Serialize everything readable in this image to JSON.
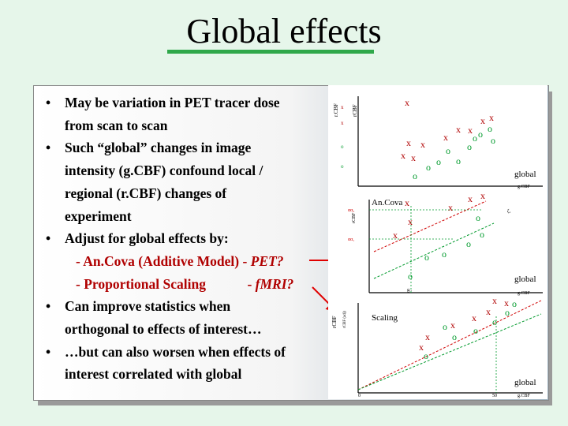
{
  "slide": {
    "title": "Global effects",
    "bullets": [
      {
        "lines": [
          "May be variation in PET tracer dose",
          "from scan to scan"
        ]
      },
      {
        "lines": [
          "Such “global” changes in image",
          "intensity (g.CBF) confound local /",
          "regional (r.CBF) changes of",
          "experiment"
        ]
      },
      {
        "lines": [
          "Adjust for global effects by:"
        ],
        "subs": [
          {
            "text": "- An.Cova (Additive Model) - ",
            "model": "PET?"
          },
          {
            "text": "- Proportional Scaling            - ",
            "model": "fMRI?"
          }
        ]
      },
      {
        "lines": [
          "Can improve statistics when",
          "orthogonal to effects of interest…"
        ]
      },
      {
        "lines": [
          "…but can also worsen when effects of",
          "interest correlated with global"
        ]
      }
    ]
  },
  "figure": {
    "panels": [
      {
        "label": "",
        "xlabel": "global",
        "xunit": "g.CBF",
        "ylabel": "r.CBF",
        "ylabel2": "rCBF"
      },
      {
        "label": "An.Cova",
        "xlabel": "global",
        "xunit": "g.CBF",
        "ylabel": "rCBF",
        "tick1": "αα₂",
        "tick2": "αα₁",
        "c_label": "ζ₁",
        "g_label": "g.."
      },
      {
        "label": "Scaling",
        "xlabel": "global",
        "xunit": "g.CBF",
        "ylabel": "rCBF",
        "ylabel2": "rCBF (adj)",
        "zero": "0",
        "fifty": "50"
      }
    ],
    "colors": {
      "x_marker": "#b00000",
      "o_marker": "#009a2c",
      "fit_line": "#d00000",
      "guide_line": "#009a2c",
      "arrow": "#e00000"
    }
  },
  "chart_data": [
    {
      "type": "scatter",
      "series": [
        {
          "marker": "x",
          "points": [
            [
              100,
              26
            ],
            [
              196,
              49
            ],
            [
              149,
              70
            ],
            [
              165,
              60
            ],
            [
              180,
              61
            ],
            [
              207,
              45
            ],
            [
              102,
              77
            ],
            [
              95,
              93
            ],
            [
              120,
              79
            ],
            [
              108,
              96
            ]
          ]
        },
        {
          "marker": "o",
          "points": [
            [
              193,
              66
            ],
            [
              209,
              74
            ],
            [
              205,
              59
            ],
            [
              179,
              82
            ],
            [
              186,
              71
            ],
            [
              165,
              100
            ],
            [
              152,
              87
            ],
            [
              140,
              101
            ],
            [
              127,
              108
            ],
            [
              110,
              119
            ]
          ]
        }
      ]
    },
    {
      "type": "scatter",
      "series": [
        {
          "marker": "x",
          "points": [
            [
              100,
              18
            ],
            [
              196,
              9
            ],
            [
              180,
              13
            ],
            [
              155,
              24
            ],
            [
              104,
              42
            ],
            [
              85,
              59
            ]
          ]
        },
        {
          "marker": "o",
          "points": [
            [
              190,
              37
            ],
            [
              195,
              58
            ],
            [
              178,
              70
            ],
            [
              147,
              83
            ],
            [
              125,
              87
            ],
            [
              104,
              111
            ]
          ]
        }
      ]
    },
    {
      "type": "scatter",
      "series": [
        {
          "marker": "x",
          "points": [
            [
              226,
              12
            ],
            [
              211,
              9
            ],
            [
              203,
              23
            ],
            [
              185,
              31
            ],
            [
              158,
              40
            ],
            [
              126,
              55
            ],
            [
              118,
              68
            ]
          ]
        },
        {
          "marker": "o",
          "points": [
            [
              236,
              13
            ],
            [
              227,
              24
            ],
            [
              211,
              36
            ],
            [
              187,
              47
            ],
            [
              160,
              55
            ],
            [
              124,
              79
            ],
            [
              148,
              42
            ]
          ]
        }
      ]
    }
  ]
}
